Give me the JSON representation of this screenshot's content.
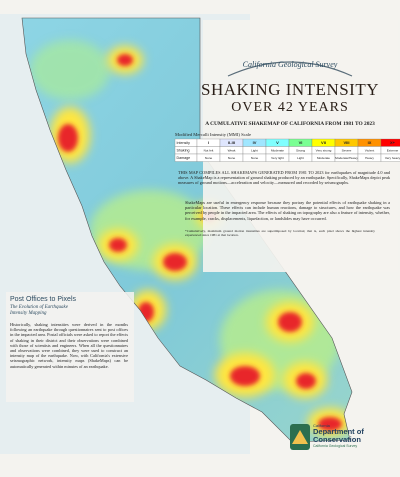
{
  "header": {
    "agency": "California Geological Survey",
    "title": "SHAKING INTENSITY",
    "subtitle": "OVER 42 YEARS",
    "tagline": "A CUMULATIVE SHAKEMAP OF CALIFORNIA FROM 1981 TO 2023"
  },
  "legend": {
    "title": "Modified Mercalli Intensity (MMI) Scale",
    "row_labels": [
      "Intensity",
      "Shaking",
      "Damage"
    ],
    "intensity": [
      "I",
      "II-III",
      "IV",
      "V",
      "VI",
      "VII",
      "VIII",
      "IX",
      "X+"
    ],
    "shaking": [
      "Not felt",
      "Weak",
      "Light",
      "Moderate",
      "Strong",
      "Very strong",
      "Severe",
      "Violent",
      "Extreme"
    ],
    "damage": [
      "None",
      "None",
      "None",
      "Very light",
      "Light",
      "Moderate",
      "Moderate/Heavy",
      "Heavy",
      "Very heavy"
    ],
    "colors": [
      "#ffffff",
      "#dfe6fe",
      "#a0e6ff",
      "#80ffff",
      "#7aff93",
      "#ffff00",
      "#ffc800",
      "#ff9100",
      "#ff0000"
    ]
  },
  "body": {
    "paragraphs": [
      "THIS MAP COMPILES ALL SHAKEMAPS GENERATED FROM 1981 TO 2023 for earthquakes of magnitude 4.0 and above. A ShakeMap is a representation of ground shaking produced by an earthquake. Specifically, ShakeMaps depict peak measures of ground motions—acceleration and velocity—measured and recorded by seismographs.",
      "ShakeMaps are useful in emergency response because they portray the potential effects of earthquake shaking in a particular location. These effects can include human reactions, damage to structures, and how the earthquake was perceived by people in the impacted area. The effects of shaking on topography are also a feature of intensity, whether, for example, cracks, displacements, liquefaction, or landslides may have occurred."
    ],
    "note": "*Cumulatively, maximum ground motion intensities are superimposed by location; that is, each pixel shows the highest intensity experienced since 1981 at that location."
  },
  "sidebar": {
    "title": "Post Offices to Pixels",
    "subtitle": "The Evolution of Earthquake Intensity Mapping",
    "text": "Historically, shaking intensities were derived in the months following an earthquake through questionnaires sent to post offices in the impacted area. Postal officials were asked to report the effects of shaking in their district and their observations were combined with those of scientists and engineers. When all the questionnaires and observations were combined, they were used to construct an intensity map of the earthquake. Now, with California's extensive seismographic network, intensity maps (ShakeMaps) can be automatically generated within minutes of an earthquake."
  },
  "logo": {
    "line1": "California",
    "line2": "Department of",
    "line3": "Conservation",
    "line4": "California Geological Survey"
  }
}
